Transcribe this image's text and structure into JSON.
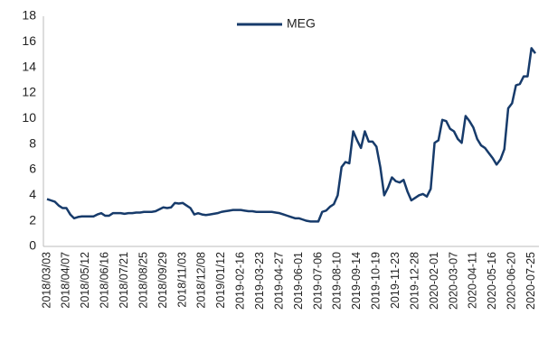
{
  "chart_data": {
    "type": "line",
    "categories": [
      "2018/03/03",
      null,
      null,
      null,
      null,
      "2018/04/07",
      null,
      null,
      null,
      null,
      "2018/05/12",
      null,
      null,
      null,
      null,
      "2018/06/16",
      null,
      null,
      null,
      null,
      "2018/07/21",
      null,
      null,
      null,
      null,
      "2018/08/25",
      null,
      null,
      null,
      null,
      "2018/09/29",
      null,
      null,
      null,
      null,
      "2018/11/03",
      null,
      null,
      null,
      null,
      "2018/12/08",
      null,
      null,
      null,
      null,
      "2019/01/12",
      null,
      null,
      null,
      null,
      "2019-02-16",
      null,
      null,
      null,
      null,
      "2019-03-23",
      null,
      null,
      null,
      null,
      "2019-04-27",
      null,
      null,
      null,
      null,
      "2019-06-01",
      null,
      null,
      null,
      null,
      "2019-07-06",
      null,
      null,
      null,
      null,
      "2019-08-10",
      null,
      null,
      null,
      null,
      "2019-09-14",
      null,
      null,
      null,
      null,
      "2019-10-19",
      null,
      null,
      null,
      null,
      "2019-11-23",
      null,
      null,
      null,
      null,
      "2019-12-28",
      null,
      null,
      null,
      null,
      "2020-02-01",
      null,
      null,
      null,
      null,
      "2020-03-07",
      null,
      null,
      null,
      null,
      "2020-04-11",
      null,
      null,
      null,
      null,
      "2020-05-16",
      null,
      null,
      null,
      null,
      "2020-06-20",
      null,
      null,
      null,
      null,
      "2020-07-25",
      null
    ],
    "series": [
      {
        "name": "MEG",
        "color": "#173b6b",
        "values": [
          3.7,
          3.6,
          3.5,
          3.2,
          3.0,
          3.0,
          2.5,
          2.2,
          2.3,
          2.35,
          2.35,
          2.35,
          2.35,
          2.5,
          2.6,
          2.4,
          2.4,
          2.6,
          2.6,
          2.6,
          2.55,
          2.6,
          2.6,
          2.65,
          2.65,
          2.7,
          2.7,
          2.7,
          2.75,
          2.9,
          3.05,
          3.0,
          3.05,
          3.4,
          3.35,
          3.4,
          3.2,
          3.0,
          2.5,
          2.6,
          2.5,
          2.45,
          2.5,
          2.55,
          2.6,
          2.7,
          2.75,
          2.8,
          2.85,
          2.85,
          2.85,
          2.8,
          2.75,
          2.75,
          2.7,
          2.7,
          2.7,
          2.7,
          2.7,
          2.65,
          2.6,
          2.5,
          2.4,
          2.3,
          2.2,
          2.2,
          2.1,
          2.0,
          1.95,
          1.95,
          1.95,
          2.7,
          2.8,
          3.1,
          3.3,
          4.0,
          6.2,
          6.6,
          6.5,
          9.0,
          8.3,
          7.7,
          9.0,
          8.2,
          8.2,
          7.8,
          6.2,
          4.0,
          4.6,
          5.4,
          5.1,
          5.0,
          5.2,
          4.3,
          3.6,
          3.8,
          4.0,
          4.1,
          3.9,
          4.5,
          8.1,
          8.3,
          9.9,
          9.8,
          9.2,
          9.0,
          8.4,
          8.1,
          10.2,
          9.8,
          9.3,
          8.4,
          7.9,
          7.7,
          7.3,
          6.9,
          6.4,
          6.8,
          7.6,
          10.8,
          11.2,
          12.6,
          12.7,
          13.3,
          13.3,
          15.5,
          15.1
        ]
      }
    ],
    "ylim": [
      0,
      18
    ],
    "yticks": [
      0,
      2,
      4,
      6,
      8,
      10,
      12,
      14,
      16,
      18
    ],
    "grid": false,
    "legend": "top"
  }
}
